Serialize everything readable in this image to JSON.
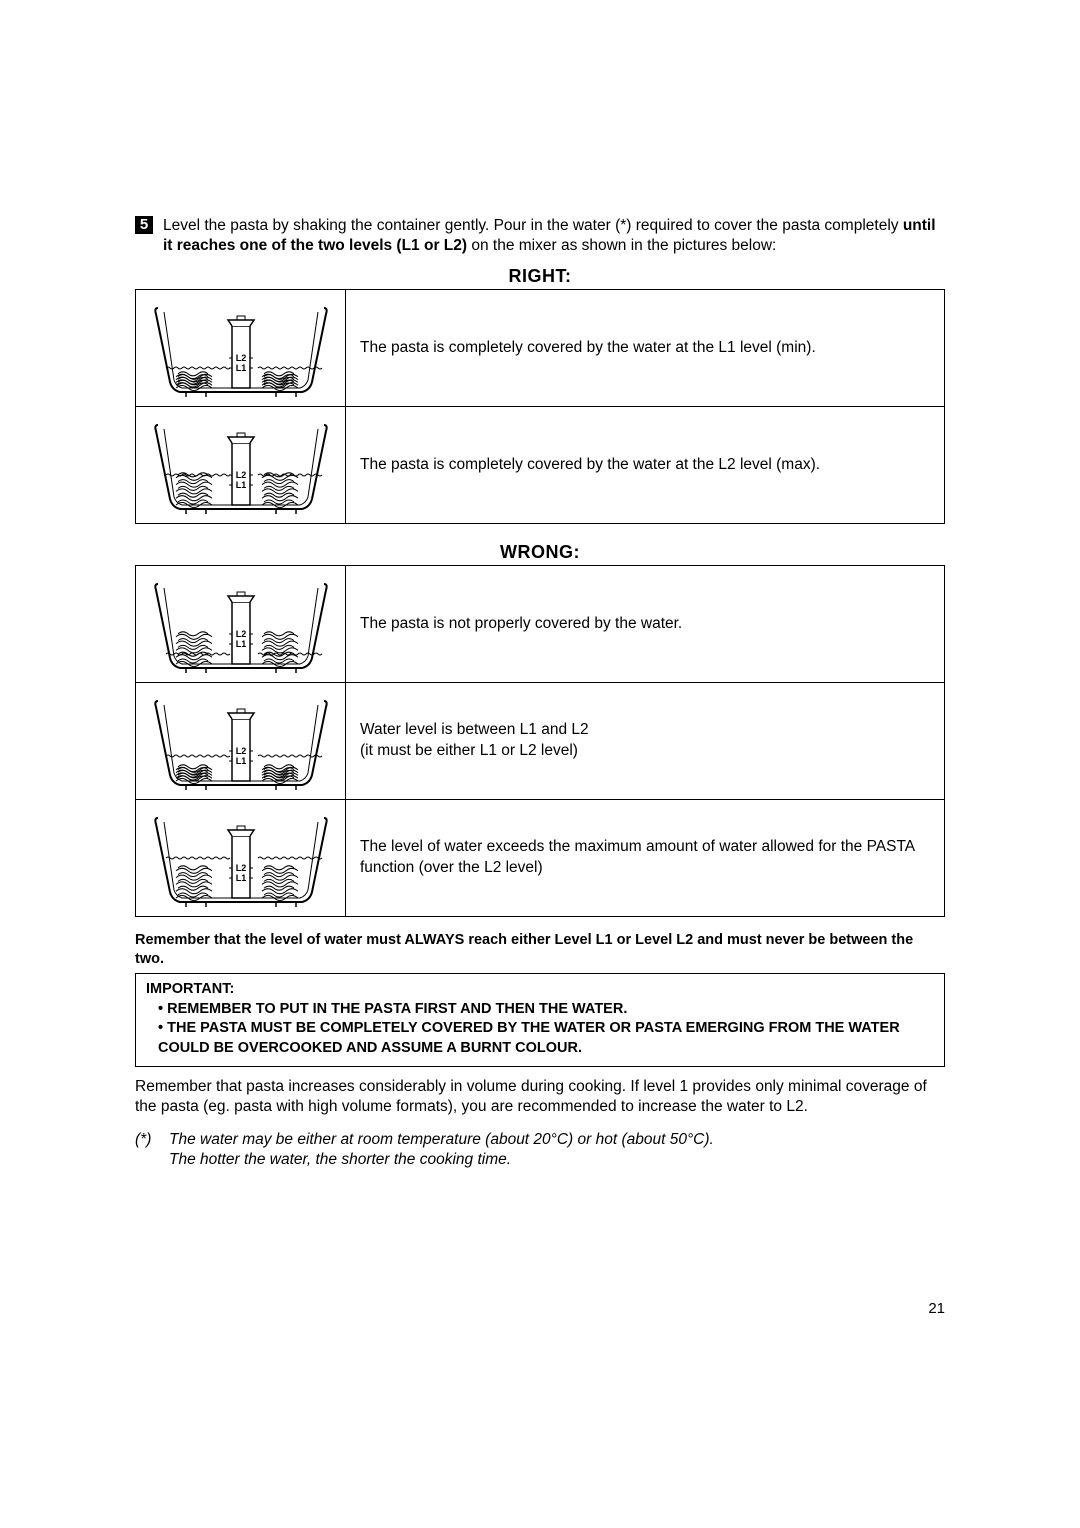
{
  "step": {
    "number": "5",
    "text_prefix": "Level the pasta by shaking the container gently. Pour in the water (*) required to cover the pasta completely ",
    "text_bold": "until it reaches one of the two levels (L1 or L2)",
    "text_suffix": " on the mixer as shown in the pictures below:"
  },
  "labels": {
    "l1": "L1",
    "l2": "L2"
  },
  "right": {
    "title": "RIGHT:",
    "rows": [
      {
        "desc": "The pasta is completely covered by the water at the L1 level (min).",
        "water": "L1",
        "pasta": "low"
      },
      {
        "desc": "The pasta is completely covered by the water at the L2 level (max).",
        "water": "L2",
        "pasta": "high"
      }
    ]
  },
  "wrong": {
    "title": "WRONG:",
    "rows": [
      {
        "desc": "The pasta is not properly covered by the water.",
        "water": "low",
        "pasta": "high"
      },
      {
        "desc": "Water level is between L1 and L2\n(it must be either L1 or L2 level)",
        "water": "mid",
        "pasta": "low"
      },
      {
        "desc": "The level of water exceeds the maximum amount of water allowed for the PASTA function (over the L2 level)",
        "water": "over",
        "pasta": "high"
      }
    ]
  },
  "remember": "Remember that the level of water must ALWAYS reach either Level L1 or Level L2 and must never be between the two.",
  "important": {
    "heading": "IMPORTANT:",
    "items": [
      "REMEMBER TO PUT IN THE PASTA FIRST AND THEN THE WATER.",
      "THE PASTA MUST BE COMPLETELY COVERED BY THE WATER OR PASTA EMERGING FROM THE WATER COULD BE OVERCOOKED AND ASSUME A BURNT COLOUR."
    ]
  },
  "volume_note": "Remember that pasta increases considerably in volume during cooking. If level 1 provides only minimal coverage of the pasta (eg. pasta with high volume formats), you are recommended to increase the water to L2.",
  "footnote": {
    "mark": "(*)",
    "text": "The water may be either at room temperature (about 20°C) or hot (about 50°C).\nThe hotter the water, the shorter the cooking time."
  },
  "page_number": "21",
  "svg": {
    "width": 190,
    "height": 104,
    "water_y": {
      "L1": 72,
      "L2": 62,
      "low": 82,
      "mid": 67,
      "over": 52
    },
    "pasta_top": {
      "low": 78,
      "high": 58
    }
  }
}
